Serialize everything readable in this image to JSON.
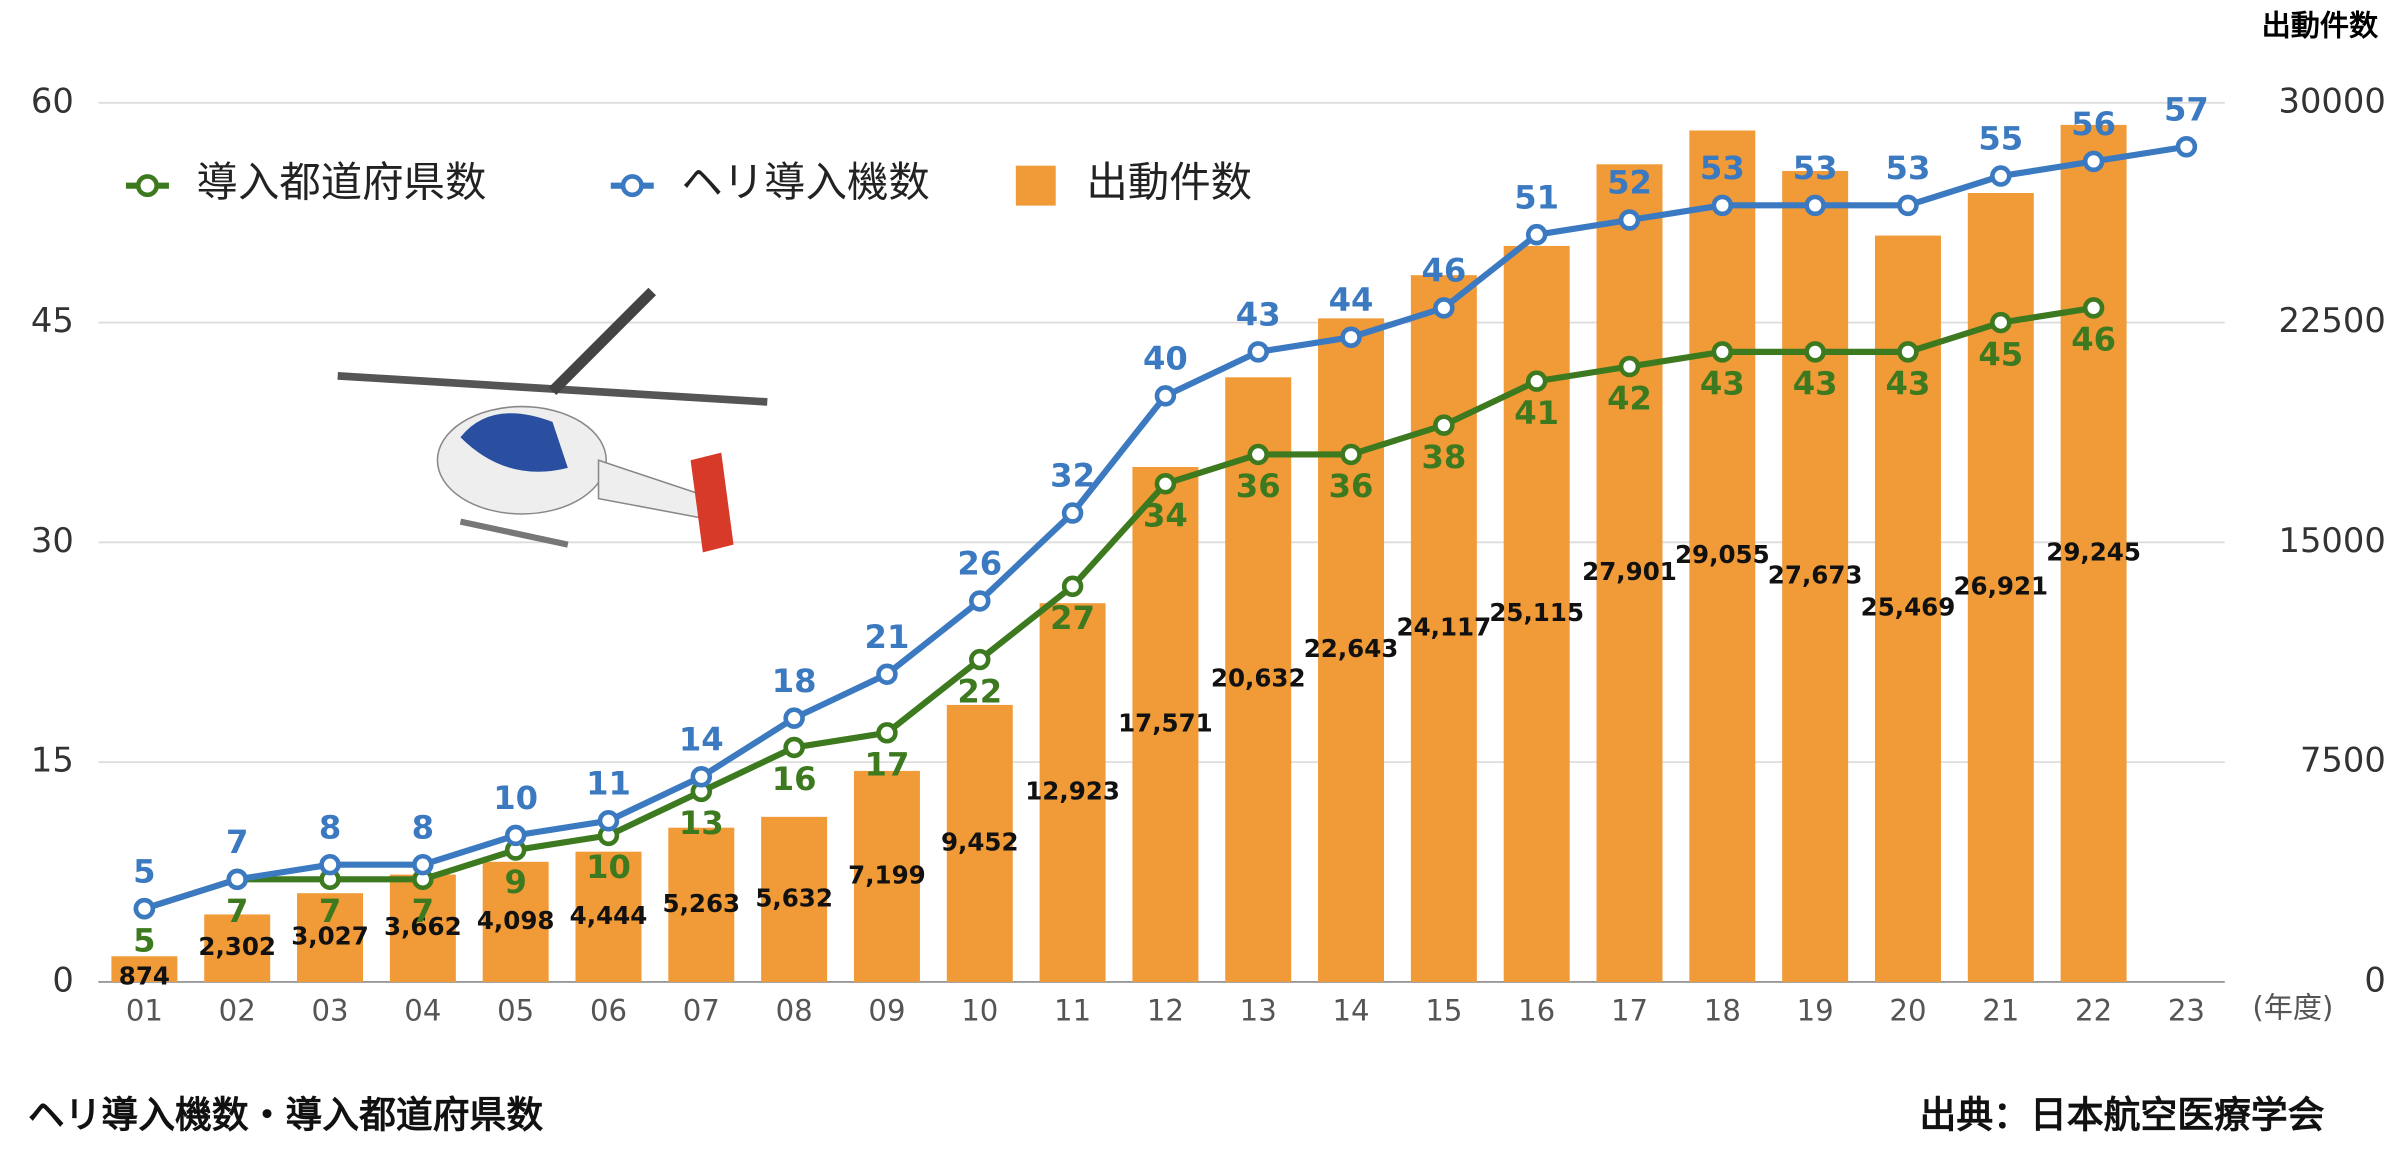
{
  "chart_data": {
    "type": "bar-line",
    "categories": [
      "01",
      "02",
      "03",
      "04",
      "05",
      "06",
      "07",
      "08",
      "09",
      "10",
      "11",
      "12",
      "13",
      "14",
      "15",
      "16",
      "17",
      "18",
      "19",
      "20",
      "21",
      "22",
      "23"
    ],
    "series": [
      {
        "name": "導入都道府県数",
        "type": "line",
        "color": "#3d7a1f",
        "values": [
          5,
          7,
          7,
          7,
          9,
          10,
          13,
          16,
          17,
          22,
          27,
          34,
          36,
          36,
          38,
          41,
          42,
          43,
          43,
          43,
          45,
          46,
          null
        ]
      },
      {
        "name": "ヘリ導入機数",
        "type": "line",
        "color": "#3b79c0",
        "values": [
          5,
          7,
          8,
          8,
          10,
          11,
          14,
          18,
          21,
          26,
          32,
          40,
          43,
          44,
          46,
          51,
          52,
          53,
          53,
          53,
          55,
          56,
          57
        ]
      },
      {
        "name": "出動件数",
        "type": "bar",
        "axis": "y2",
        "color": "#f09a38",
        "values": [
          874,
          2302,
          3027,
          3662,
          4098,
          4444,
          5263,
          5632,
          7199,
          9452,
          12923,
          17571,
          20632,
          22643,
          24117,
          25115,
          27901,
          29055,
          27673,
          25469,
          26921,
          29245,
          null
        ],
        "value_labels": [
          "874",
          "2,302",
          "3,027",
          "3,662",
          "4,098",
          "4,444",
          "5,263",
          "5,632",
          "7,199",
          "9,452",
          "12,923",
          "17,571",
          "20,632",
          "22,643",
          "24,117",
          "25,115",
          "27,901",
          "29,055",
          "27,673",
          "25,469",
          "26,921",
          "29,245",
          null
        ]
      }
    ],
    "ylim": [
      0,
      60
    ],
    "yticks": [
      0,
      15,
      30,
      45,
      60
    ],
    "y2lim": [
      0,
      30000
    ],
    "y2ticks": [
      0,
      7500,
      15000,
      22500,
      30000
    ],
    "y2_label": "出動件数",
    "x_unit": "(年度)",
    "caption": "ヘリ導入機数・導入都道府県数",
    "source": "出典：日本航空医療学会",
    "grid": true,
    "legend": "top-left"
  }
}
